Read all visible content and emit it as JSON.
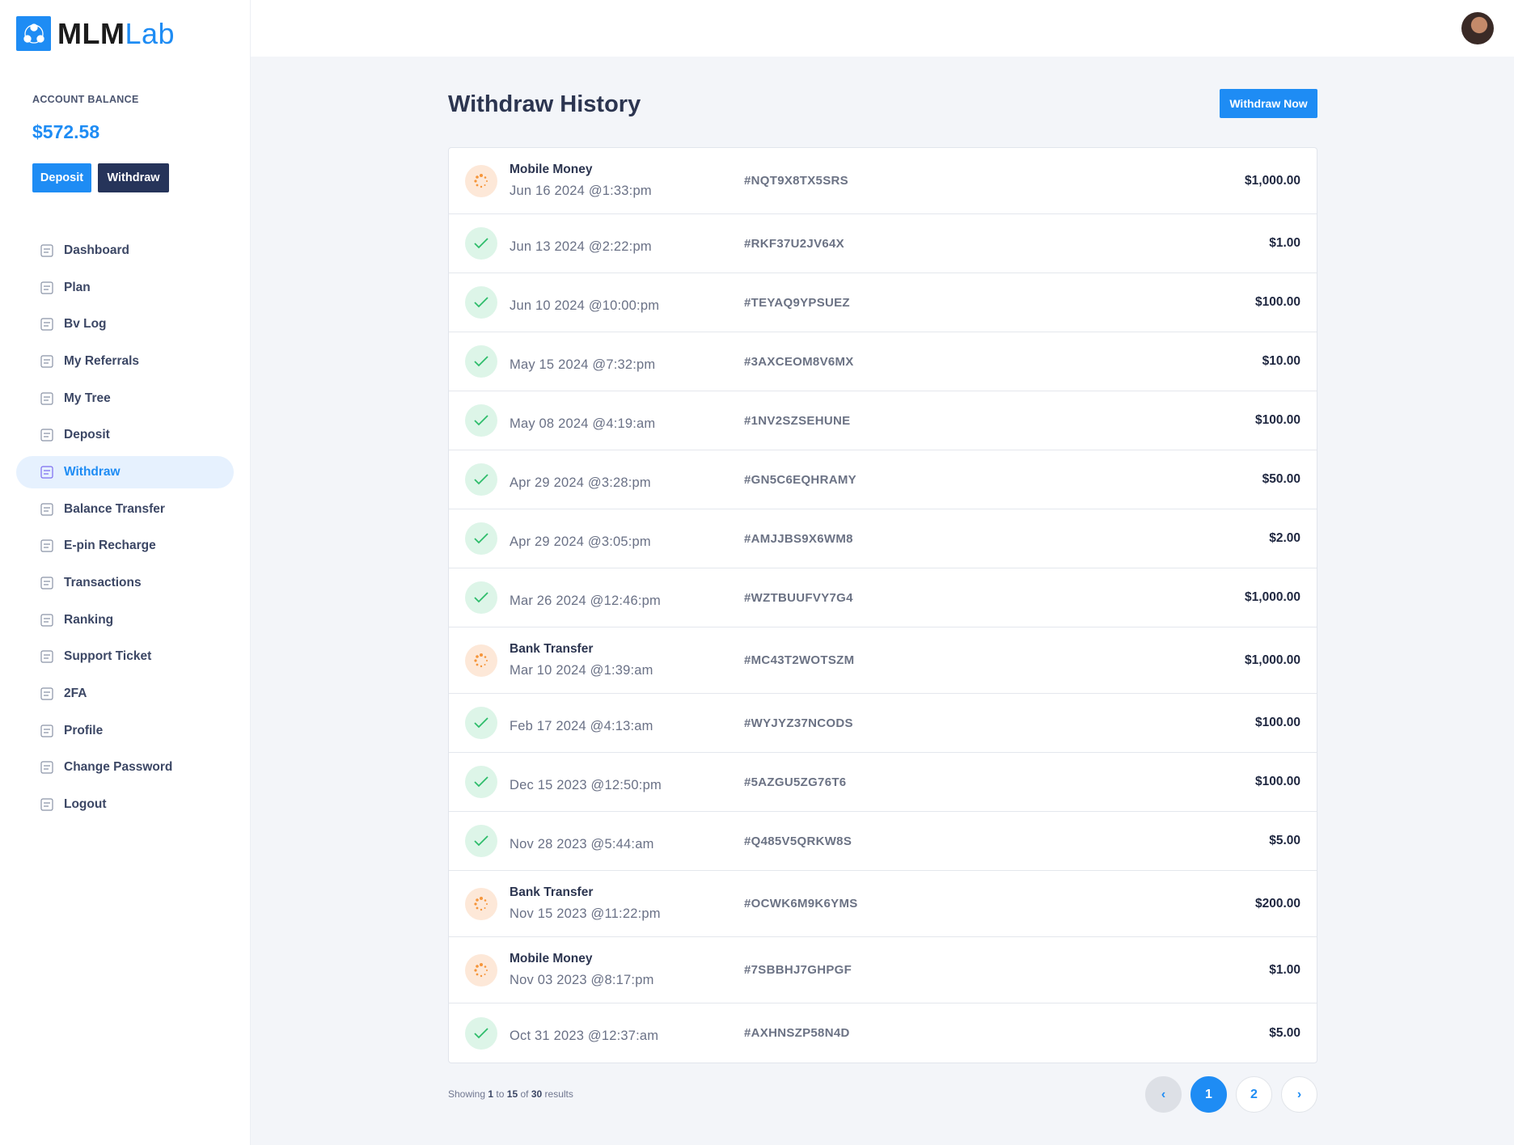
{
  "brand": {
    "name_bold": "MLM",
    "name_light": "Lab",
    "accent": "#1e8cf4"
  },
  "sidebar": {
    "balance_label": "ACCOUNT BALANCE",
    "balance": "$572.58",
    "deposit_label": "Deposit",
    "withdraw_label": "Withdraw",
    "items": [
      {
        "label": "Dashboard",
        "icon": "dashboard-icon"
      },
      {
        "label": "Plan",
        "icon": "plan-icon"
      },
      {
        "label": "Bv Log",
        "icon": "bv-log-icon"
      },
      {
        "label": "My Referrals",
        "icon": "referrals-icon"
      },
      {
        "label": "My Tree",
        "icon": "tree-icon"
      },
      {
        "label": "Deposit",
        "icon": "wallet-icon"
      },
      {
        "label": "Withdraw",
        "icon": "atm-icon",
        "active": true
      },
      {
        "label": "Balance Transfer",
        "icon": "transfer-icon"
      },
      {
        "label": "E-pin Recharge",
        "icon": "epin-icon"
      },
      {
        "label": "Transactions",
        "icon": "transactions-icon"
      },
      {
        "label": "Ranking",
        "icon": "ranking-icon"
      },
      {
        "label": "Support Ticket",
        "icon": "ticket-icon"
      },
      {
        "label": "2FA",
        "icon": "fingerprint-icon"
      },
      {
        "label": "Profile",
        "icon": "user-icon"
      },
      {
        "label": "Change Password",
        "icon": "key-icon"
      },
      {
        "label": "Logout",
        "icon": "logout-icon"
      }
    ]
  },
  "main": {
    "title": "Withdraw History",
    "withdraw_now_label": "Withdraw Now",
    "rows": [
      {
        "status": "pending",
        "method": "Mobile Money",
        "date": "Jun 16 2024 @1:33:pm",
        "trx": "#NQT9X8TX5SRS",
        "amount": "$1,000.00"
      },
      {
        "status": "success",
        "method": "",
        "date": "Jun 13 2024 @2:22:pm",
        "trx": "#RKF37U2JV64X",
        "amount": "$1.00"
      },
      {
        "status": "success",
        "method": "",
        "date": "Jun 10 2024 @10:00:pm",
        "trx": "#TEYAQ9YPSUEZ",
        "amount": "$100.00"
      },
      {
        "status": "success",
        "method": "",
        "date": "May 15 2024 @7:32:pm",
        "trx": "#3AXCEOM8V6MX",
        "amount": "$10.00"
      },
      {
        "status": "success",
        "method": "",
        "date": "May 08 2024 @4:19:am",
        "trx": "#1NV2SZSEHUNE",
        "amount": "$100.00"
      },
      {
        "status": "success",
        "method": "",
        "date": "Apr 29 2024 @3:28:pm",
        "trx": "#GN5C6EQHRAMY",
        "amount": "$50.00"
      },
      {
        "status": "success",
        "method": "",
        "date": "Apr 29 2024 @3:05:pm",
        "trx": "#AMJJBS9X6WM8",
        "amount": "$2.00"
      },
      {
        "status": "success",
        "method": "",
        "date": "Mar 26 2024 @12:46:pm",
        "trx": "#WZTBUUFVY7G4",
        "amount": "$1,000.00"
      },
      {
        "status": "pending",
        "method": "Bank Transfer",
        "date": "Mar 10 2024 @1:39:am",
        "trx": "#MC43T2WOTSZM",
        "amount": "$1,000.00"
      },
      {
        "status": "success",
        "method": "",
        "date": "Feb 17 2024 @4:13:am",
        "trx": "#WYJYZ37NCODS",
        "amount": "$100.00"
      },
      {
        "status": "success",
        "method": "",
        "date": "Dec 15 2023 @12:50:pm",
        "trx": "#5AZGU5ZG76T6",
        "amount": "$100.00"
      },
      {
        "status": "success",
        "method": "",
        "date": "Nov 28 2023 @5:44:am",
        "trx": "#Q485V5QRKW8S",
        "amount": "$5.00"
      },
      {
        "status": "pending",
        "method": "Bank Transfer",
        "date": "Nov 15 2023 @11:22:pm",
        "trx": "#OCWK6M9K6YMS",
        "amount": "$200.00"
      },
      {
        "status": "pending",
        "method": "Mobile Money",
        "date": "Nov 03 2023 @8:17:pm",
        "trx": "#7SBBHJ7GHPGF",
        "amount": "$1.00"
      },
      {
        "status": "success",
        "method": "",
        "date": "Oct 31 2023 @12:37:am",
        "trx": "#AXHNSZP58N4D",
        "amount": "$5.00"
      }
    ],
    "pagination": {
      "showing_prefix": "Showing",
      "from": "1",
      "to_word": "to",
      "to": "15",
      "of_word": "of",
      "total": "30",
      "suffix": "results",
      "prev": "‹",
      "pages": [
        "1",
        "2"
      ],
      "current": "1",
      "next": "›"
    }
  }
}
